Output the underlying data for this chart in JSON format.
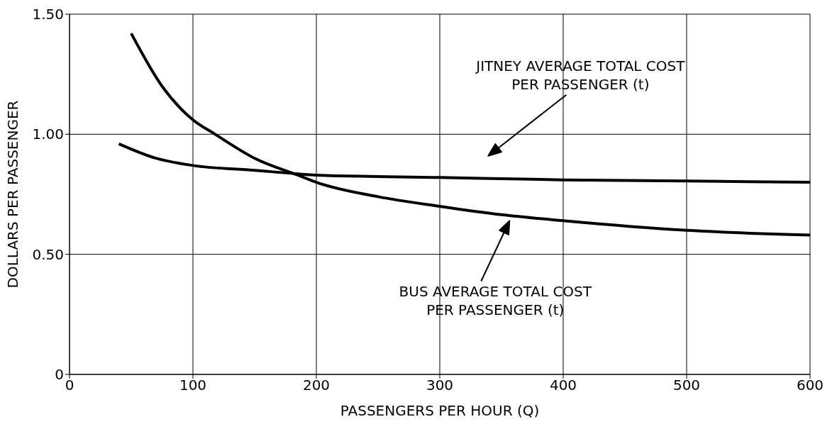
{
  "chart_data": {
    "type": "line",
    "xlabel": "PASSENGERS PER HOUR (Q)",
    "ylabel": "DOLLARS PER PASSENGER",
    "xlim": [
      0,
      600
    ],
    "xticks": [
      0,
      100,
      200,
      300,
      400,
      500,
      600
    ],
    "ylim": [
      0,
      1.5
    ],
    "yticks": [
      {
        "value": 0,
        "label": "0"
      },
      {
        "value": 0.5,
        "label": "0.50"
      },
      {
        "value": 1,
        "label": "1.00"
      },
      {
        "value": 1.5,
        "label": "1.50"
      }
    ],
    "grid": true,
    "marker": "none",
    "line_style": "solid",
    "series": [
      {
        "color": "#000000",
        "x": [
          50,
          75,
          100,
          118,
          150,
          185,
          200,
          250,
          300,
          350,
          400,
          500,
          600
        ],
        "values": [
          1.42,
          1.2,
          1.06,
          1.0,
          0.9,
          0.83,
          0.8,
          0.74,
          0.7,
          0.665,
          0.64,
          0.6,
          0.58
        ]
      },
      {
        "color": "#000000",
        "x": [
          40,
          70,
          100,
          150,
          185,
          200,
          300,
          400,
          500,
          600
        ],
        "values": [
          0.96,
          0.9,
          0.87,
          0.85,
          0.835,
          0.83,
          0.82,
          0.81,
          0.805,
          0.8
        ]
      }
    ],
    "annotations": [
      "JITNEY AVERAGE TOTAL COST\nPER PASSENGER (t)",
      "BUS AVERAGE TOTAL COST\nPER PASSENGER (t)"
    ]
  }
}
